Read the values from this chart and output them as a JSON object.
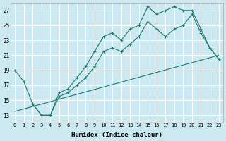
{
  "xlabel": "Humidex (Indice chaleur)",
  "bg_color": "#cce8f0",
  "line_color": "#1a7a6e",
  "grid_color": "#ffffff",
  "xlim": [
    -0.5,
    23.5
  ],
  "ylim": [
    12,
    28
  ],
  "xticks": [
    0,
    1,
    2,
    3,
    4,
    5,
    6,
    7,
    8,
    9,
    10,
    11,
    12,
    13,
    14,
    15,
    16,
    17,
    18,
    19,
    20,
    21,
    22,
    23
  ],
  "yticks": [
    13,
    15,
    17,
    19,
    21,
    23,
    25,
    27
  ],
  "series": [
    {
      "x": [
        0,
        1,
        2,
        3,
        4,
        5,
        6,
        7,
        8,
        9,
        10,
        11,
        12,
        13,
        14,
        15,
        16,
        17,
        18,
        19,
        20,
        21,
        22,
        23
      ],
      "y": [
        19,
        17.5,
        14.5,
        13.0,
        13.0,
        16.0,
        16.5,
        18.0,
        19.5,
        21.5,
        23.5,
        24.0,
        23.0,
        24.5,
        25.0,
        27.5,
        26.5,
        27.0,
        27.5,
        27.0,
        27.0,
        24.5,
        22.0,
        20.5
      ],
      "marker": true
    },
    {
      "x": [
        2,
        3,
        4,
        5,
        6,
        7,
        8,
        9,
        10,
        11,
        12,
        13,
        14,
        15,
        16,
        17,
        18,
        19,
        20,
        21,
        22,
        23
      ],
      "y": [
        14.5,
        13.0,
        13.0,
        15.5,
        16.0,
        17.0,
        18.0,
        19.5,
        21.5,
        22.0,
        21.5,
        22.5,
        23.5,
        25.5,
        24.5,
        23.5,
        24.5,
        25.0,
        26.5,
        24.0,
        22.0,
        20.5
      ],
      "marker": true
    },
    {
      "x": [
        0,
        23
      ],
      "y": [
        13.5,
        21.0
      ],
      "marker": false
    }
  ]
}
